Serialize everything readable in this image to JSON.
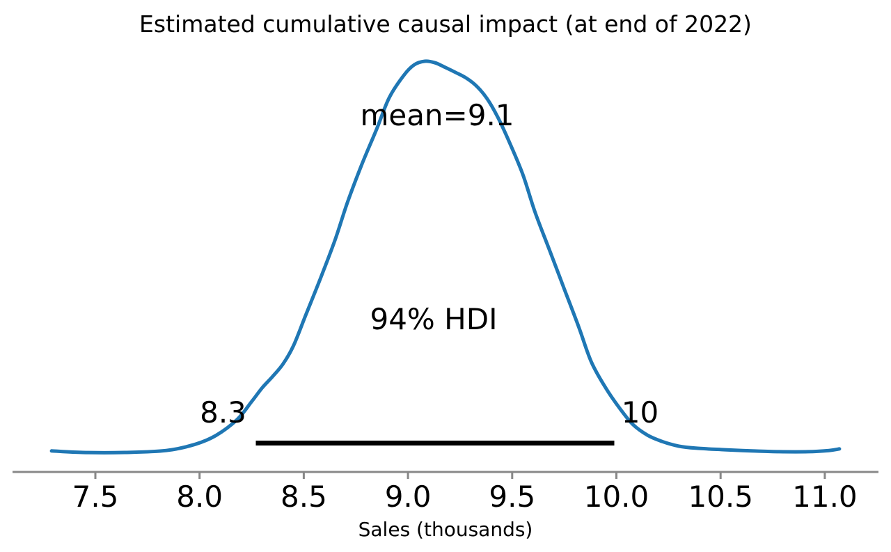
{
  "page": {
    "background": "#ffffff"
  },
  "chart_data": {
    "type": "kde",
    "title": "Estimated cumulative causal impact (at end of 2022)",
    "xlabel": "Sales (thousands)",
    "ylabel": "",
    "grid": false,
    "legend": null,
    "xlim": [
      7.1,
      11.26
    ],
    "x_ticks": [
      7.5,
      8.0,
      8.5,
      9.0,
      9.5,
      10.0,
      10.5,
      11.0
    ],
    "x_tick_labels": [
      "7.5",
      "8.0",
      "8.5",
      "9.0",
      "9.5",
      "10.0",
      "10.5",
      "11.0"
    ],
    "mean": 9.1,
    "mean_label": "mean=9.1",
    "hdi_prob": 0.94,
    "hdi_label": "94% HDI",
    "hdi_interval": [
      8.27,
      9.99
    ],
    "hdi_lower_label": "8.3",
    "hdi_upper_label": "10",
    "curve_color": "#1f77b4",
    "hdi_bar_color": "#000000",
    "axis_color": "#888888",
    "text_color": "#000000",
    "curve": {
      "x": [
        7.29,
        7.44,
        7.64,
        7.84,
        7.98,
        8.08,
        8.18,
        8.25,
        8.3,
        8.35,
        8.4,
        8.45,
        8.51,
        8.58,
        8.65,
        8.71,
        8.78,
        8.85,
        8.91,
        8.98,
        9.03,
        9.08,
        9.13,
        9.18,
        9.23,
        9.28,
        9.33,
        9.38,
        9.43,
        9.48,
        9.55,
        9.61,
        9.68,
        9.75,
        9.82,
        9.88,
        9.95,
        10.02,
        10.08,
        10.15,
        10.22,
        10.3,
        10.38,
        10.52,
        10.65,
        10.78,
        10.92,
        11.02,
        11.07
      ],
      "density": [
        0.004,
        0.0,
        0.0,
        0.005,
        0.021,
        0.044,
        0.084,
        0.13,
        0.165,
        0.194,
        0.226,
        0.272,
        0.352,
        0.445,
        0.543,
        0.64,
        0.738,
        0.827,
        0.907,
        0.964,
        0.991,
        1.0,
        0.996,
        0.984,
        0.971,
        0.957,
        0.936,
        0.904,
        0.858,
        0.801,
        0.712,
        0.614,
        0.516,
        0.418,
        0.32,
        0.231,
        0.164,
        0.11,
        0.071,
        0.044,
        0.028,
        0.016,
        0.011,
        0.007,
        0.004,
        0.002,
        0.002,
        0.005,
        0.009
      ]
    }
  }
}
